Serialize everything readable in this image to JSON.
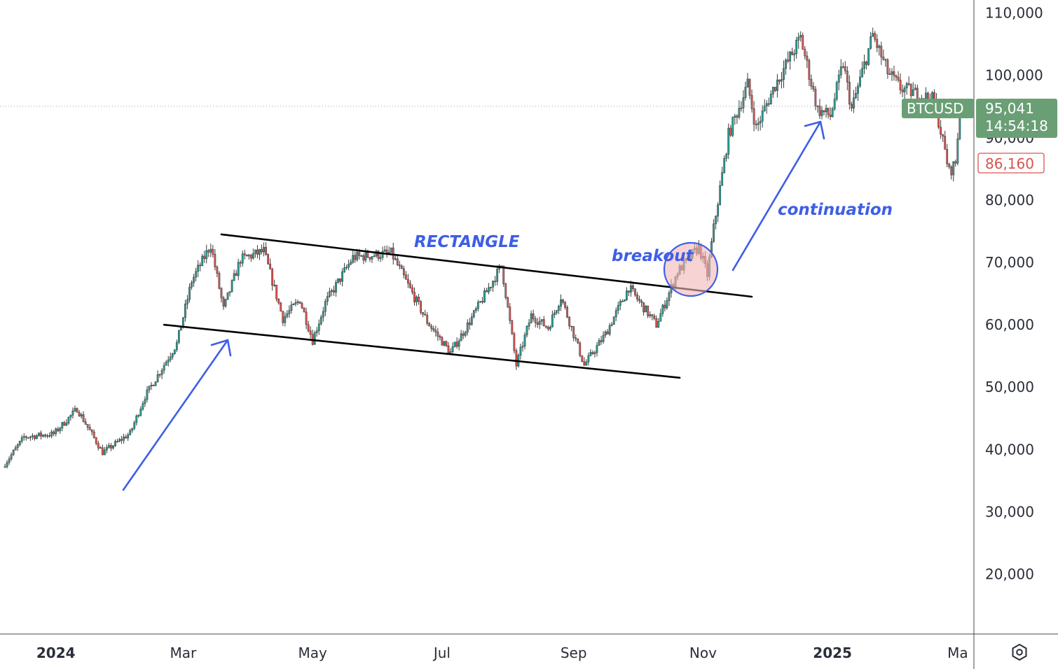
{
  "chart_data": {
    "type": "candlestick",
    "symbol": "BTCUSD",
    "last_price": 95041,
    "last_price_label": "95,041",
    "countdown": "14:54:18",
    "low_marker": 86160,
    "low_marker_label": "86,160",
    "ylim": [
      10000,
      112000
    ],
    "y_ticks": [
      {
        "value": 20000,
        "label": "20,000"
      },
      {
        "value": 30000,
        "label": "30,000"
      },
      {
        "value": 40000,
        "label": "40,000"
      },
      {
        "value": 50000,
        "label": "50,000"
      },
      {
        "value": 60000,
        "label": "60,000"
      },
      {
        "value": 70000,
        "label": "70,000"
      },
      {
        "value": 80000,
        "label": "80,000"
      },
      {
        "value": 90000,
        "label": "90,000"
      },
      {
        "value": 100000,
        "label": "100,000"
      },
      {
        "value": 110000,
        "label": "110,000"
      }
    ],
    "x_ticks": [
      {
        "date": "2024-01-01",
        "label": "2024",
        "bold": true
      },
      {
        "date": "2024-03-01",
        "label": "Mar",
        "bold": false
      },
      {
        "date": "2024-05-01",
        "label": "May",
        "bold": false
      },
      {
        "date": "2024-07-01",
        "label": "Jul",
        "bold": false
      },
      {
        "date": "2024-09-01",
        "label": "Sep",
        "bold": false
      },
      {
        "date": "2024-11-01",
        "label": "Nov",
        "bold": false
      },
      {
        "date": "2025-01-01",
        "label": "2025",
        "bold": true
      },
      {
        "date": "2025-03-01",
        "label": "Ma",
        "bold": false
      }
    ],
    "x_range": [
      "2023-12-07",
      "2025-03-07"
    ],
    "price_path": [
      [
        "2023-12-07",
        37200
      ],
      [
        "2023-12-17",
        42000
      ],
      [
        "2023-12-31",
        42500
      ],
      [
        "2024-01-11",
        46500
      ],
      [
        "2024-01-23",
        39500
      ],
      [
        "2024-02-05",
        42600
      ],
      [
        "2024-02-12",
        48500
      ],
      [
        "2024-02-27",
        57000
      ],
      [
        "2024-03-05",
        67000
      ],
      [
        "2024-03-14",
        72800
      ],
      [
        "2024-03-20",
        62500
      ],
      [
        "2024-03-28",
        70500
      ],
      [
        "2024-04-08",
        71800
      ],
      [
        "2024-04-17",
        61000
      ],
      [
        "2024-04-25",
        64000
      ],
      [
        "2024-05-01",
        57500
      ],
      [
        "2024-05-07",
        63500
      ],
      [
        "2024-05-20",
        70800
      ],
      [
        "2024-06-07",
        71500
      ],
      [
        "2024-06-24",
        60500
      ],
      [
        "2024-07-05",
        55500
      ],
      [
        "2024-07-14",
        60500
      ],
      [
        "2024-07-29",
        69500
      ],
      [
        "2024-08-05",
        53500
      ],
      [
        "2024-08-12",
        61500
      ],
      [
        "2024-08-20",
        59500
      ],
      [
        "2024-08-26",
        64500
      ],
      [
        "2024-09-06",
        53500
      ],
      [
        "2024-09-16",
        58500
      ],
      [
        "2024-09-27",
        66000
      ],
      [
        "2024-10-10",
        60000
      ],
      [
        "2024-10-20",
        68500
      ],
      [
        "2024-10-30",
        72500
      ],
      [
        "2024-11-03",
        68000
      ],
      [
        "2024-11-06",
        75500
      ],
      [
        "2024-11-13",
        90500
      ],
      [
        "2024-11-22",
        98500
      ],
      [
        "2024-11-26",
        91500
      ],
      [
        "2024-12-05",
        98500
      ],
      [
        "2024-12-17",
        106000
      ],
      [
        "2024-12-25",
        94500
      ],
      [
        "2024-12-31",
        93500
      ],
      [
        "2025-01-06",
        102000
      ],
      [
        "2025-01-10",
        94500
      ],
      [
        "2025-01-20",
        106500
      ],
      [
        "2025-01-27",
        100500
      ],
      [
        "2025-02-02",
        98000
      ],
      [
        "2025-02-18",
        96000
      ],
      [
        "2025-02-25",
        84500
      ],
      [
        "2025-02-28",
        86000
      ],
      [
        "2025-03-02",
        94500
      ]
    ],
    "trendlines": [
      {
        "name": "rectangle-top",
        "from": [
          "2024-03-19",
          74500
        ],
        "to": [
          "2024-11-24",
          64500
        ]
      },
      {
        "name": "rectangle-bottom",
        "from": [
          "2024-02-21",
          60000
        ],
        "to": [
          "2024-10-21",
          51500
        ]
      }
    ],
    "annotations": {
      "rectangle": "RECTANGLE",
      "breakout": "breakout",
      "continuation": "continuation"
    },
    "colors": {
      "up": "#26a69a",
      "down": "#ef5350",
      "arrow": "#3d5ee6",
      "annotation_text": "#3d5ee6",
      "price_tag_bg": "#6a9f76",
      "low_tag": "#d9534f",
      "circle_fill": "#f4b6b6",
      "circle_stroke": "#3d5ee6"
    }
  },
  "toolbar": {
    "settings_icon": "settings-hexagon-icon"
  }
}
